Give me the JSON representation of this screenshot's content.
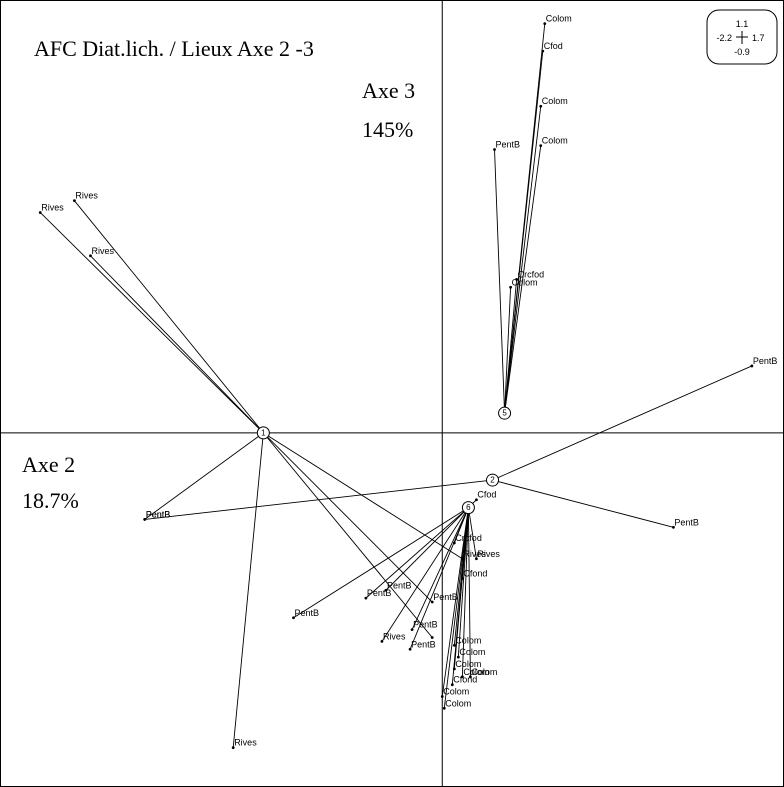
{
  "chart_data": {
    "type": "scatter",
    "title": "AFC Diat.lich. / Lieux Axe 2 -3",
    "axis_labels": {
      "x": {
        "name": "Axe 2",
        "percent": "18.7%"
      },
      "y": {
        "name": "Axe 3",
        "percent": "145%"
      }
    },
    "xlim": [
      -2.2,
      1.7
    ],
    "ylim": [
      -0.9,
      1.1
    ],
    "scale_legend": {
      "top": "1.1",
      "left": "-2.2",
      "right": "1.7",
      "bottom": "-0.9"
    },
    "grid": false,
    "groups": [
      {
        "name": "1",
        "center": [
          -0.89,
          0.0
        ],
        "points": [
          {
            "label": "Rives",
            "x": -2.0,
            "y": 0.56
          },
          {
            "label": "Rives",
            "x": -1.83,
            "y": 0.59
          },
          {
            "label": "Rives",
            "x": -1.75,
            "y": 0.45
          },
          {
            "label": "PentB",
            "x": -1.48,
            "y": -0.22
          },
          {
            "label": "Rives",
            "x": -1.04,
            "y": -0.8
          },
          {
            "label": "Rives",
            "x": 0.1,
            "y": -0.32
          },
          {
            "label": "PentB",
            "x": -0.05,
            "y": -0.43
          },
          {
            "label": "",
            "x": -0.05,
            "y": -0.52
          }
        ]
      },
      {
        "name": "2",
        "center": [
          0.25,
          -0.12
        ],
        "points": [
          {
            "label": "PentB",
            "x": 1.54,
            "y": 0.17
          },
          {
            "label": "PentB",
            "x": 1.15,
            "y": -0.24
          },
          {
            "label": "PentB",
            "x": -1.48,
            "y": -0.22
          }
        ]
      },
      {
        "name": "5",
        "center": [
          0.31,
          0.05
        ],
        "points": [
          {
            "label": "Colom",
            "x": 0.51,
            "y": 1.04
          },
          {
            "label": "Cfod",
            "x": 0.5,
            "y": 0.97
          },
          {
            "label": "Colom",
            "x": 0.49,
            "y": 0.83
          },
          {
            "label": "Colom",
            "x": 0.49,
            "y": 0.73
          },
          {
            "label": "PentB",
            "x": 0.26,
            "y": 0.72
          },
          {
            "label": "Crcfod",
            "x": 0.37,
            "y": 0.39
          },
          {
            "label": "Colom",
            "x": 0.34,
            "y": 0.37
          }
        ]
      },
      {
        "name": "6",
        "center": [
          0.13,
          -0.19
        ],
        "points": [
          {
            "label": "Cfod",
            "x": 0.17,
            "y": -0.17
          },
          {
            "label": "Crcfod",
            "x": 0.06,
            "y": -0.28
          },
          {
            "label": "Rives",
            "x": 0.17,
            "y": -0.32
          },
          {
            "label": "Cfond",
            "x": 0.1,
            "y": -0.37
          },
          {
            "label": "PentB",
            "x": -0.28,
            "y": -0.4
          },
          {
            "label": "PentB",
            "x": -0.38,
            "y": -0.42
          },
          {
            "label": "PentB",
            "x": -0.74,
            "y": -0.47
          },
          {
            "label": "PentB",
            "x": -0.15,
            "y": -0.5
          },
          {
            "label": "Rives",
            "x": -0.3,
            "y": -0.53
          },
          {
            "label": "PentB",
            "x": -0.16,
            "y": -0.55
          },
          {
            "label": "Colom",
            "x": 0.06,
            "y": -0.54
          },
          {
            "label": "Colom",
            "x": 0.08,
            "y": -0.57
          },
          {
            "label": "Colom",
            "x": 0.06,
            "y": -0.6
          },
          {
            "label": "Colom",
            "x": 0.1,
            "y": -0.62
          },
          {
            "label": "Colom",
            "x": 0.14,
            "y": -0.62
          },
          {
            "label": "Cfond",
            "x": 0.05,
            "y": -0.64
          },
          {
            "label": "Colom",
            "x": 0.0,
            "y": -0.67
          },
          {
            "label": "Colom",
            "x": 0.01,
            "y": -0.7
          }
        ]
      }
    ]
  }
}
